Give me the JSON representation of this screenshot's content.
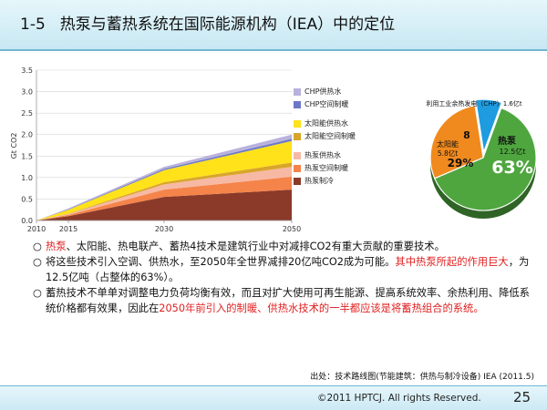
{
  "slide": {
    "section_number": "1-5",
    "title": "热泵与蓄热系统在国际能源机构（IEA）中的定位",
    "source": "出处：技术路线图(节能建筑：供热与制冷设备) IEA (2011.5)",
    "copyright": "©2011 HPTCJ. All rights Reserved.",
    "page_number": "25"
  },
  "bullets": [
    [
      {
        "text": "○",
        "red": false
      },
      {
        "text": "热泵",
        "red": true
      },
      {
        "text": "、太阳能、热电联产、蓄热4技术是建筑行业中对减排CO2有重大贡献的重要技术。",
        "red": false
      }
    ],
    [
      {
        "text": "○",
        "red": false
      },
      {
        "text": "将这些技术引入空调、供热水，至2050年全世界减排20亿吨CO2成为可能。",
        "red": false
      },
      {
        "text": "其中热泵所起的作用巨大",
        "red": true
      },
      {
        "text": "，为12.5亿吨（占整体的63%）。",
        "red": false
      }
    ],
    [
      {
        "text": "○",
        "red": false
      },
      {
        "text": "蓄热技术不单单对调整电力负荷均衡有效，而且对扩大使用可再生能源、提高系统效率、余热利用、降低系统价格都有效果，因此在",
        "red": false
      },
      {
        "text": "2050年前引入的制暖、供热水技术的一半都应该是将蓄热组合的系统。",
        "red": true
      }
    ]
  ],
  "chart_data": [
    {
      "type": "area",
      "stacked": true,
      "ylabel": "Gt CO2",
      "x": [
        2010,
        2015,
        2030,
        2050
      ],
      "xticks": [
        "2010",
        "2015",
        "2030",
        "2050"
      ],
      "yticks": [
        "0.0",
        "0.5",
        "1.0",
        "1.5",
        "2.0",
        "2.5",
        "3.0",
        "3.5"
      ],
      "ylim": [
        0,
        3.5
      ],
      "grid": true,
      "legend_position": "right",
      "series": [
        {
          "name": "热泵制冷",
          "color": "#8b3a2a",
          "values": [
            0.0,
            0.1,
            0.55,
            0.72
          ]
        },
        {
          "name": "热泵空间制暖",
          "color": "#f5844a",
          "values": [
            0.0,
            0.03,
            0.17,
            0.3
          ]
        },
        {
          "name": "热泵供热水",
          "color": "#f7b9a4",
          "values": [
            0.0,
            0.02,
            0.12,
            0.23
          ]
        },
        {
          "name": "太阳能空间制暖",
          "color": "#d9a52b",
          "values": [
            0.0,
            0.01,
            0.05,
            0.1
          ]
        },
        {
          "name": "太阳能供热水",
          "color": "#ffe21a",
          "values": [
            0.0,
            0.09,
            0.28,
            0.5
          ]
        },
        {
          "name": "CHP空间制暖",
          "color": "#6b78c8",
          "values": [
            0.0,
            0.01,
            0.03,
            0.05
          ]
        },
        {
          "name": "CHP供热水",
          "color": "#b9b2dc",
          "values": [
            0.0,
            0.02,
            0.05,
            0.1
          ]
        }
      ]
    },
    {
      "type": "pie",
      "slices": [
        {
          "name": "热泵",
          "value_label": "12.5亿t",
          "percent": 63,
          "percent_label": "63%",
          "color": "#4fa63f"
        },
        {
          "name": "太阳能",
          "value_label": "5.8亿t",
          "percent": 29,
          "percent_label": "29%",
          "color": "#f08a1e"
        },
        {
          "name": "利用工业余热发电（CHP）1.6亿t",
          "value_label": "",
          "percent": 8,
          "percent_label": "8",
          "color": "#1f9be0"
        }
      ]
    }
  ]
}
